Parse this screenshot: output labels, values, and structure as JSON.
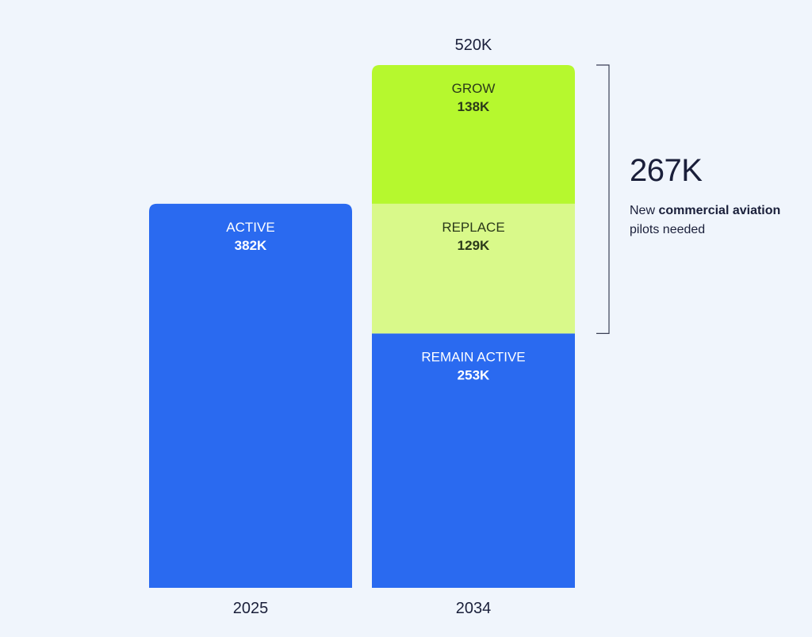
{
  "chart_data": {
    "type": "bar",
    "stacked": true,
    "categories": [
      "2025",
      "2034"
    ],
    "ylim": [
      0,
      520
    ],
    "unit": "K",
    "bars": [
      {
        "category": "2025",
        "total_label": "",
        "segments": [
          {
            "label": "ACTIVE",
            "value": 382,
            "value_label": "382K",
            "color": "#2a6af0",
            "text_color": "#ffffff"
          }
        ]
      },
      {
        "category": "2034",
        "total_label": "520K",
        "segments": [
          {
            "label": "REMAIN ACTIVE",
            "value": 253,
            "value_label": "253K",
            "color": "#2a6af0",
            "text_color": "#ffffff"
          },
          {
            "label": "REPLACE",
            "value": 129,
            "value_label": "129K",
            "color": "#d9f98a",
            "text_color": "#2b3a1a"
          },
          {
            "label": "GROW",
            "value": 138,
            "value_label": "138K",
            "color": "#b6f82e",
            "text_color": "#2b3a1a"
          }
        ]
      }
    ],
    "annotation": {
      "value": "267K",
      "text_parts": [
        {
          "text": "New ",
          "bold": false
        },
        {
          "text": "commercial aviation",
          "bold": true
        },
        {
          "text": " pilots needed",
          "bold": false
        }
      ]
    }
  }
}
